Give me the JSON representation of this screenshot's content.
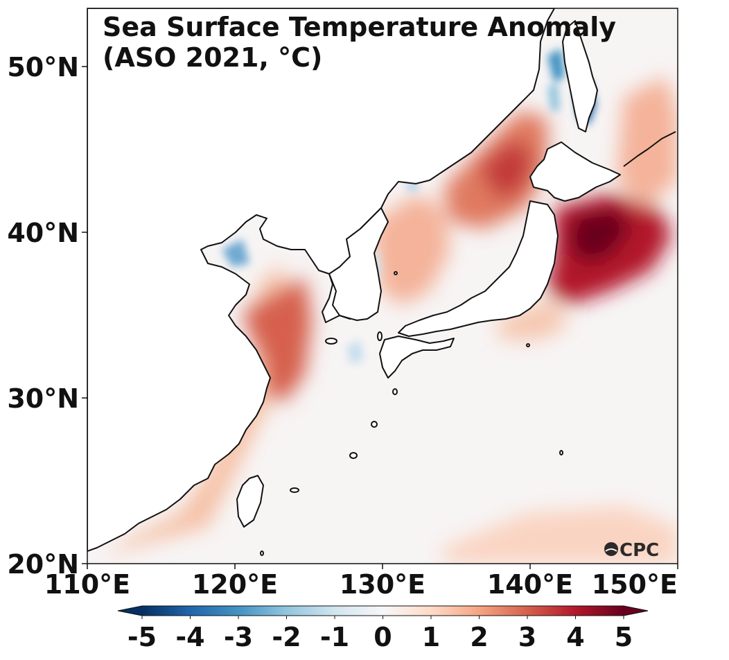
{
  "title": {
    "line1": "Sea Surface Temperature Anomaly",
    "line2": "(ASO 2021, °C)"
  },
  "axes": {
    "x_ticks": [
      "110°E",
      "120°E",
      "130°E",
      "140°E",
      "150°E"
    ],
    "y_ticks": [
      "50°N",
      "40°N",
      "30°N",
      "20°N"
    ],
    "lon_range": [
      110,
      150
    ],
    "lat_range": [
      20,
      53.5
    ]
  },
  "colorbar": {
    "ticks": [
      "-5",
      "-4",
      "-3",
      "-2",
      "-1",
      "0",
      "1",
      "2",
      "3",
      "4",
      "5"
    ],
    "range": [
      -5,
      5
    ],
    "colors": [
      "#053061",
      "#2166ac",
      "#4393c3",
      "#92c5de",
      "#d1e5f0",
      "#f7f7f7",
      "#fddbc7",
      "#f4a582",
      "#d6604d",
      "#b2182b",
      "#67001f"
    ]
  },
  "logo": {
    "text": "CPC",
    "icon": "noaa-emblem-icon"
  },
  "chart_data": {
    "type": "heatmap",
    "variable": "Sea Surface Temperature Anomaly",
    "units": "°C",
    "period": "ASO 2021",
    "region": {
      "lon": [
        110,
        150
      ],
      "lat": [
        20,
        53.5
      ]
    },
    "anomaly_patches": [
      {
        "name": "east-of-japan",
        "lon": 144,
        "lat": 40.5,
        "value": 5
      },
      {
        "name": "japan-sea-north",
        "lon": 137.5,
        "lat": 44,
        "value": 3
      },
      {
        "name": "east-china-sea",
        "lon": 123,
        "lat": 33,
        "value": 3
      },
      {
        "name": "japan-sea-south",
        "lon": 132,
        "lat": 39,
        "value": 1.5
      },
      {
        "name": "east-china-shelf",
        "lon": 120,
        "lat": 27,
        "value": 1.5
      },
      {
        "name": "south-china-coast",
        "lon": 116,
        "lat": 21,
        "value": 1.5
      },
      {
        "name": "northwest-pacific-south",
        "lon": 143,
        "lat": 21.5,
        "value": 1
      },
      {
        "name": "kuril-east",
        "lon": 148,
        "lat": 48,
        "value": 2
      },
      {
        "name": "okhotsk-sakhalin",
        "lon": 143.5,
        "lat": 48,
        "value": -3
      },
      {
        "name": "tatar-strait",
        "lon": 141,
        "lat": 50,
        "value": -2
      },
      {
        "name": "bohai-sea",
        "lon": 119.5,
        "lat": 38.5,
        "value": -2
      },
      {
        "name": "korea-strait",
        "lon": 127.5,
        "lat": 32.5,
        "value": -1
      }
    ]
  }
}
